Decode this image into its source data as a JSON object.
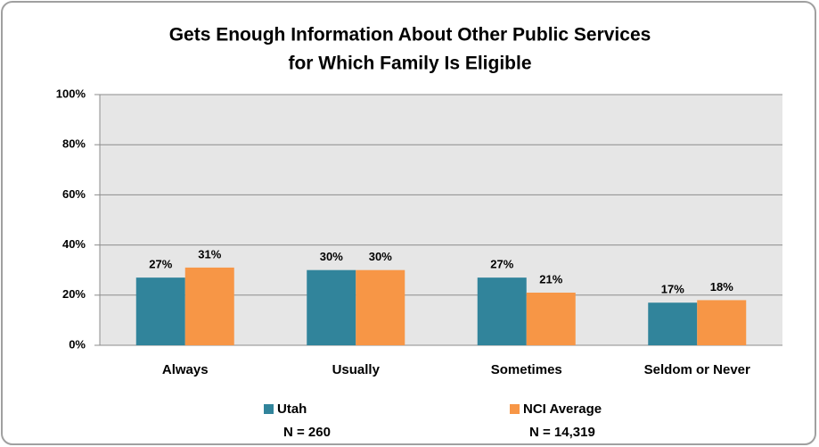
{
  "chart_data": {
    "type": "bar",
    "title": [
      "Gets Enough Information About Other Public Services",
      "for Which Family Is Eligible"
    ],
    "categories": [
      "Always",
      "Usually",
      "Sometimes",
      "Seldom or Never"
    ],
    "series": [
      {
        "name": "Utah",
        "note": "N = 260",
        "color": "#31849b",
        "values": [
          27,
          30,
          27,
          17
        ],
        "value_labels": [
          "27%",
          "30%",
          "27%",
          "17%"
        ]
      },
      {
        "name": "NCI Average",
        "note": "N = 14,319",
        "color": "#f79646",
        "values": [
          31,
          30,
          21,
          18
        ],
        "value_labels": [
          "31%",
          "30%",
          "21%",
          "18%"
        ]
      }
    ],
    "ylim": [
      0,
      100
    ],
    "yticks": [
      {
        "value": 0,
        "label": "0%"
      },
      {
        "value": 20,
        "label": "20%"
      },
      {
        "value": 40,
        "label": "40%"
      },
      {
        "value": 60,
        "label": "60%"
      },
      {
        "value": 80,
        "label": "80%"
      },
      {
        "value": 100,
        "label": "100%"
      }
    ],
    "grid": true,
    "legend": "bottom"
  }
}
